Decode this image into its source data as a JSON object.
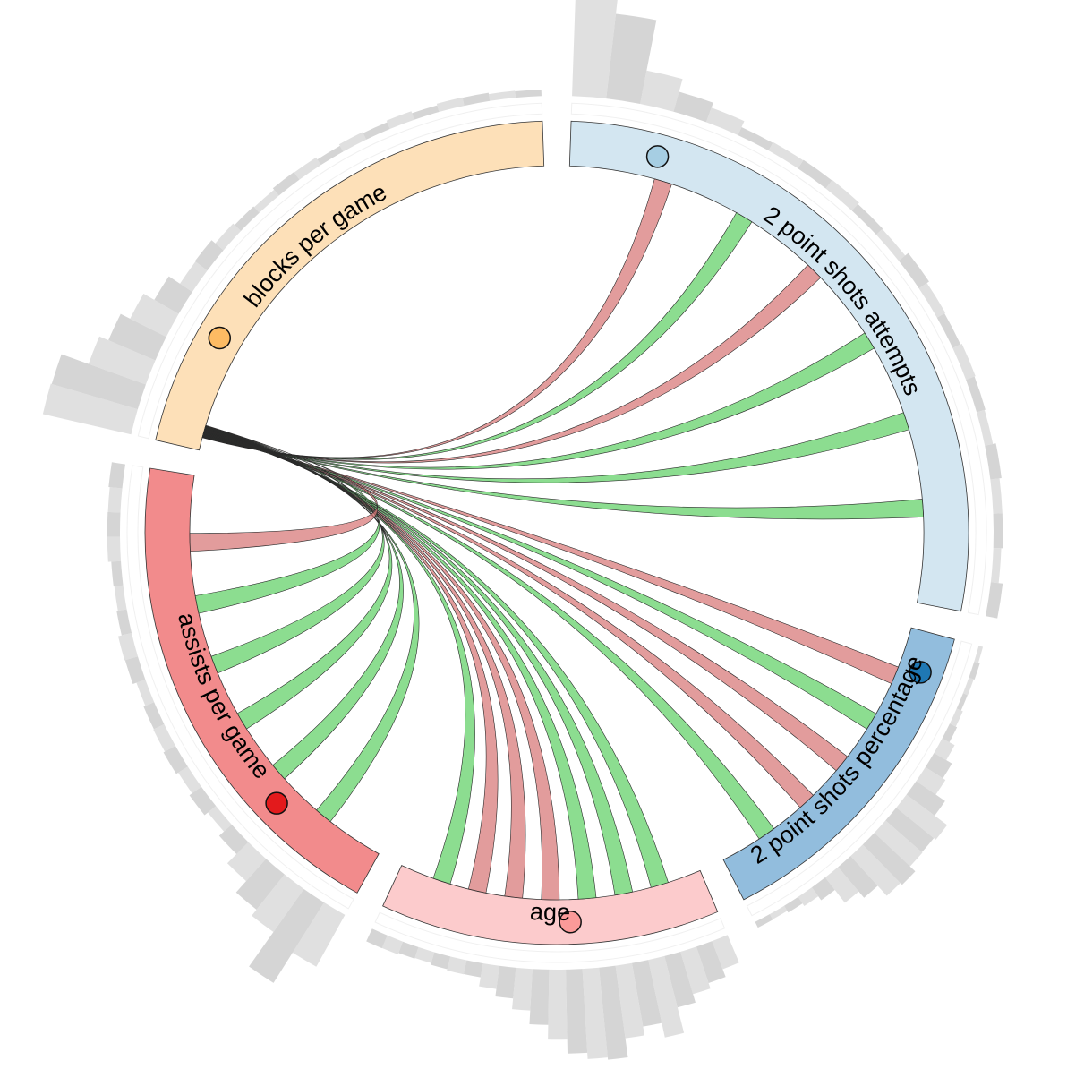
{
  "segments": [
    {
      "id": "bpg",
      "label": "blocks per game",
      "fill": "#fde0b8",
      "marker": "#fdbb63"
    },
    {
      "id": "2pa",
      "label": "2 point shots attempts",
      "fill": "#d3e6f1",
      "marker": "#a6cee3"
    },
    {
      "id": "2pp",
      "label": "2 point shots percentage",
      "fill": "#92bddd",
      "marker": "#1f78b4"
    },
    {
      "id": "age",
      "label": "age",
      "fill": "#fccbcc",
      "marker": "#fb9a99"
    },
    {
      "id": "apg",
      "label": "assists per game",
      "fill": "#f28b8c",
      "marker": "#e31a1c"
    }
  ],
  "link_colors": {
    "positive": "#5fd065",
    "negative": "#d77676"
  },
  "links": [
    {
      "to": "2pa",
      "sign": "negative"
    },
    {
      "to": "2pa",
      "sign": "positive"
    },
    {
      "to": "2pa",
      "sign": "negative"
    },
    {
      "to": "2pa",
      "sign": "positive"
    },
    {
      "to": "2pa",
      "sign": "positive"
    },
    {
      "to": "2pa",
      "sign": "positive"
    },
    {
      "to": "2pp",
      "sign": "negative"
    },
    {
      "to": "2pp",
      "sign": "positive"
    },
    {
      "to": "2pp",
      "sign": "negative"
    },
    {
      "to": "2pp",
      "sign": "negative"
    },
    {
      "to": "2pp",
      "sign": "positive"
    },
    {
      "to": "age",
      "sign": "positive"
    },
    {
      "to": "age",
      "sign": "positive"
    },
    {
      "to": "age",
      "sign": "positive"
    },
    {
      "to": "age",
      "sign": "negative"
    },
    {
      "to": "age",
      "sign": "negative"
    },
    {
      "to": "age",
      "sign": "negative"
    },
    {
      "to": "age",
      "sign": "positive"
    },
    {
      "to": "apg",
      "sign": "positive"
    },
    {
      "to": "apg",
      "sign": "positive"
    },
    {
      "to": "apg",
      "sign": "positive"
    },
    {
      "to": "apg",
      "sign": "positive"
    },
    {
      "to": "apg",
      "sign": "positive"
    },
    {
      "to": "apg",
      "sign": "negative"
    }
  ],
  "histogram_color": "#d3d3d3"
}
